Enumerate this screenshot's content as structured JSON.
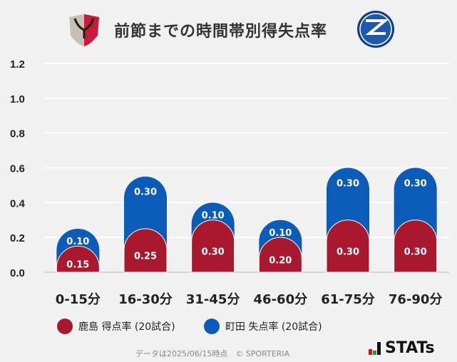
{
  "title": "前節までの時間帯別得失点率",
  "logos": {
    "home": "鹿島アントラーズ",
    "away": "FC MACHIDA ZELVIA"
  },
  "chart_data": {
    "type": "bar",
    "stacked": true,
    "categories": [
      "0-15分",
      "16-30分",
      "31-45分",
      "46-60分",
      "61-75分",
      "76-90分"
    ],
    "series": [
      {
        "name": "鹿島 得点率 (20試合)",
        "color": "#a8182e",
        "values": [
          0.15,
          0.25,
          0.3,
          0.2,
          0.3,
          0.3
        ],
        "labels": [
          "0.15",
          "0.25",
          "0.30",
          "0.20",
          "0.30",
          "0.30"
        ]
      },
      {
        "name": "町田 失点率 (20試合)",
        "color": "#0a5cb8",
        "values": [
          0.1,
          0.3,
          0.1,
          0.1,
          0.3,
          0.3
        ],
        "labels": [
          "0.10",
          "0.30",
          "0.10",
          "0.10",
          "0.30",
          "0.30"
        ]
      }
    ],
    "ylim": [
      0,
      1.2
    ],
    "yticks": [
      "0.0",
      "0.2",
      "0.4",
      "0.6",
      "0.8",
      "1.0",
      "1.2"
    ],
    "grid": true,
    "legend": "bottom"
  },
  "footer": "データは2025/06/15時点　© SPORTERIA",
  "brand": "STATs"
}
